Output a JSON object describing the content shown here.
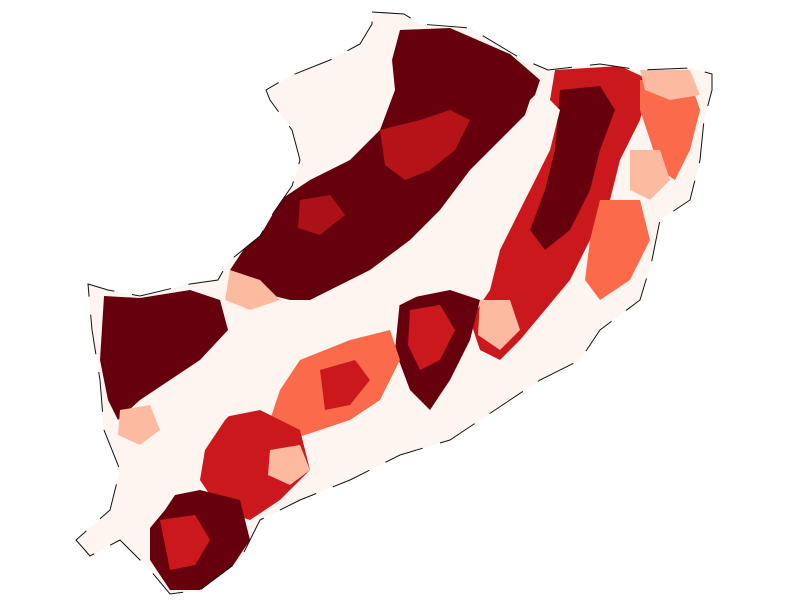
{
  "map": {
    "colors": {
      "background": "#ffffff",
      "class_1": "#fff5f0",
      "class_2": "#fcbba1",
      "class_3": "#fb6a4a",
      "class_4": "#cb181d",
      "class_5": "#67000d",
      "boundary": "#111111"
    },
    "legend": []
  }
}
